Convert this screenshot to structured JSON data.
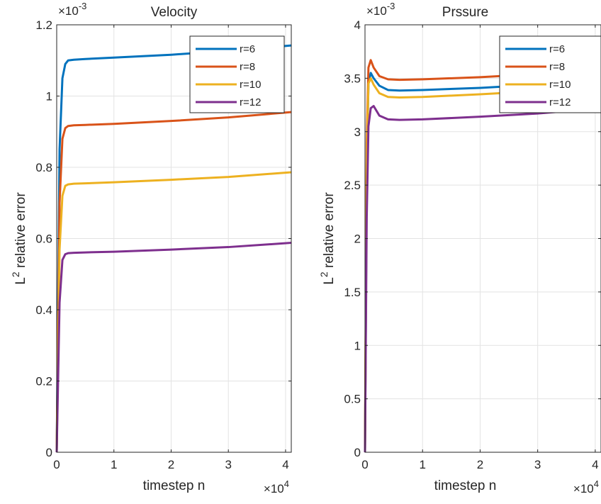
{
  "chart_data": [
    {
      "type": "line",
      "title": "Velocity",
      "xlabel": "timestep n",
      "ylabel_base": "L",
      "ylabel_sup": "2",
      "ylabel_rest": " relative error",
      "x_multiplier": {
        "base": "×10",
        "exp": "4"
      },
      "y_multiplier": {
        "base": "×10",
        "exp": "-3"
      },
      "xlim": [
        0,
        4.1
      ],
      "ylim": [
        0,
        1.2
      ],
      "xticks": [
        0,
        1,
        2,
        3,
        4
      ],
      "xtick_labels": [
        "0",
        "1",
        "2",
        "3",
        "4"
      ],
      "yticks": [
        0,
        0.2,
        0.4,
        0.6,
        0.8,
        1,
        1.2
      ],
      "ytick_labels": [
        "0",
        "0.2",
        "0.4",
        "0.6",
        "0.8",
        "1",
        "1.2"
      ],
      "grid": true,
      "legend_position": "top-right",
      "series": [
        {
          "name": "r=6",
          "color": "#0072BD",
          "x": [
            0,
            0.05,
            0.1,
            0.15,
            0.2,
            0.3,
            0.5,
            1,
            2,
            3,
            4.1
          ],
          "y": [
            0,
            0.85,
            1.05,
            1.09,
            1.1,
            1.102,
            1.104,
            1.108,
            1.116,
            1.127,
            1.142
          ]
        },
        {
          "name": "r=8",
          "color": "#D95319",
          "x": [
            0,
            0.05,
            0.1,
            0.15,
            0.2,
            0.3,
            0.5,
            1,
            2,
            3,
            4.1
          ],
          "y": [
            0,
            0.7,
            0.88,
            0.91,
            0.916,
            0.918,
            0.919,
            0.922,
            0.93,
            0.94,
            0.955
          ]
        },
        {
          "name": "r=10",
          "color": "#EDB120",
          "x": [
            0,
            0.05,
            0.1,
            0.15,
            0.2,
            0.3,
            0.5,
            1,
            2,
            3,
            4.1
          ],
          "y": [
            0,
            0.57,
            0.72,
            0.748,
            0.752,
            0.754,
            0.755,
            0.758,
            0.765,
            0.773,
            0.786
          ]
        },
        {
          "name": "r=12",
          "color": "#7E2F8E",
          "x": [
            0,
            0.05,
            0.1,
            0.15,
            0.2,
            0.3,
            0.5,
            1,
            2,
            3,
            4.1
          ],
          "y": [
            0,
            0.42,
            0.54,
            0.556,
            0.559,
            0.56,
            0.561,
            0.563,
            0.569,
            0.576,
            0.588
          ]
        }
      ]
    },
    {
      "type": "line",
      "title": "Prssure",
      "xlabel": "timestep n",
      "ylabel_base": "L",
      "ylabel_sup": "2",
      "ylabel_rest": " relative error",
      "x_multiplier": {
        "base": "×10",
        "exp": "4"
      },
      "y_multiplier": {
        "base": "×10",
        "exp": "-3"
      },
      "xlim": [
        0,
        4.1
      ],
      "ylim": [
        0,
        4
      ],
      "xticks": [
        0,
        1,
        2,
        3,
        4
      ],
      "xtick_labels": [
        "0",
        "1",
        "2",
        "3",
        "4"
      ],
      "yticks": [
        0,
        0.5,
        1,
        1.5,
        2,
        2.5,
        3,
        3.5,
        4
      ],
      "ytick_labels": [
        "0",
        "0.5",
        "1",
        "1.5",
        "2",
        "2.5",
        "3",
        "3.5",
        "4"
      ],
      "grid": true,
      "legend_position": "top-right",
      "series": [
        {
          "name": "r=6",
          "color": "#0072BD",
          "x": [
            0,
            0.03,
            0.06,
            0.1,
            0.15,
            0.25,
            0.4,
            0.6,
            1,
            2,
            3,
            4.1
          ],
          "y": [
            0,
            2.6,
            3.45,
            3.55,
            3.5,
            3.43,
            3.39,
            3.385,
            3.39,
            3.41,
            3.44,
            3.48
          ]
        },
        {
          "name": "r=8",
          "color": "#D95319",
          "x": [
            0,
            0.03,
            0.06,
            0.1,
            0.15,
            0.25,
            0.4,
            0.6,
            1,
            2,
            3,
            4.1
          ],
          "y": [
            0,
            2.9,
            3.6,
            3.67,
            3.6,
            3.52,
            3.49,
            3.485,
            3.49,
            3.51,
            3.54,
            3.58
          ]
        },
        {
          "name": "r=10",
          "color": "#EDB120",
          "x": [
            0,
            0.03,
            0.06,
            0.1,
            0.15,
            0.25,
            0.4,
            0.6,
            1,
            2,
            3,
            4.1
          ],
          "y": [
            0,
            2.7,
            3.45,
            3.5,
            3.44,
            3.36,
            3.325,
            3.32,
            3.325,
            3.35,
            3.38,
            3.42
          ]
        },
        {
          "name": "r=12",
          "color": "#7E2F8E",
          "x": [
            0,
            0.03,
            0.06,
            0.1,
            0.15,
            0.25,
            0.4,
            0.6,
            1,
            2,
            3,
            4.1
          ],
          "y": [
            0,
            2.2,
            3.05,
            3.22,
            3.24,
            3.15,
            3.115,
            3.11,
            3.115,
            3.14,
            3.17,
            3.22
          ]
        }
      ]
    }
  ]
}
